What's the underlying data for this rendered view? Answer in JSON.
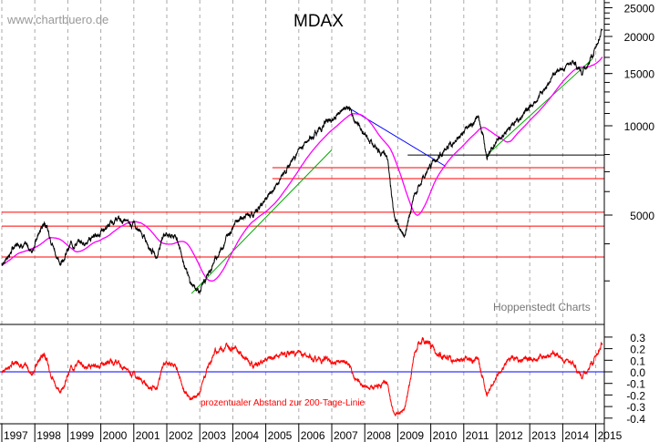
{
  "watermark": "www.chartbuero.de",
  "credit": "Hoppenstedt Charts",
  "chart_data": [
    {
      "type": "line",
      "title": "MDAX",
      "scale": "log",
      "grid": "vertical dashed, yearly",
      "ylim": [
        2000,
        26000
      ],
      "yticks": [
        "25000",
        "20000",
        "15000",
        "10000",
        "5000"
      ],
      "ytick_values": [
        25000,
        20000,
        15000,
        10000,
        5000
      ],
      "xticks": [
        "1997",
        "1998",
        "1999",
        "2000",
        "2001",
        "2002",
        "2003",
        "2004",
        "2005",
        "2006",
        "2007",
        "2008",
        "2009",
        "2010",
        "2011",
        "2012",
        "2013",
        "2014",
        "2015"
      ],
      "series": [
        {
          "color": "#000000",
          "points": [
            [
              1997.0,
              3410
            ],
            [
              1997.5,
              4070
            ],
            [
              1997.9,
              3800
            ],
            [
              1998.3,
              4790
            ],
            [
              1998.75,
              3410
            ],
            [
              1999.1,
              3990
            ],
            [
              1999.6,
              4070
            ],
            [
              2000.5,
              4840
            ],
            [
              2001.0,
              4690
            ],
            [
              2001.7,
              3620
            ],
            [
              2001.9,
              4350
            ],
            [
              2002.3,
              4220
            ],
            [
              2002.7,
              2960
            ],
            [
              2003.0,
              2760
            ],
            [
              2003.4,
              3410
            ],
            [
              2004.1,
              4840
            ],
            [
              2004.6,
              5000
            ],
            [
              2005.2,
              6000
            ],
            [
              2006.0,
              8260
            ],
            [
              2006.4,
              9200
            ],
            [
              2006.8,
              10200
            ],
            [
              2007.45,
              11500
            ],
            [
              2007.85,
              9860
            ],
            [
              2008.3,
              8560
            ],
            [
              2008.7,
              7700
            ],
            [
              2008.9,
              4840
            ],
            [
              2009.2,
              4270
            ],
            [
              2009.5,
              5800
            ],
            [
              2010.05,
              7540
            ],
            [
              2010.75,
              8900
            ],
            [
              2011.45,
              10700
            ],
            [
              2011.7,
              8090
            ],
            [
              2012.4,
              9860
            ],
            [
              2013.2,
              12200
            ],
            [
              2013.8,
              15300
            ],
            [
              2014.35,
              16400
            ],
            [
              2014.6,
              15050
            ],
            [
              2014.9,
              17100
            ],
            [
              2015.2,
              21200
            ]
          ]
        }
      ],
      "moving_average": {
        "days": 200,
        "color": "#ff00ff"
      },
      "horizontal_lines": [
        {
          "value": 7970,
          "color": "#000000",
          "from": 2009.3
        },
        {
          "value": 7220,
          "color": "#ff0000",
          "from": 2005.2
        },
        {
          "value": 6635,
          "color": "#ff0000",
          "from": 2005.2
        },
        {
          "value": 5110,
          "color": "#ff0000",
          "from": 1997.0
        },
        {
          "value": 4590,
          "color": "#ff0000",
          "from": 1997.0
        },
        {
          "value": 3610,
          "color": "#ff0000",
          "from": 1997.0
        }
      ],
      "trend_lines": [
        {
          "color": "#00aa00",
          "from": [
            2002.75,
            2720
          ],
          "to": [
            2007.0,
            8300
          ]
        },
        {
          "color": "#0000ff",
          "from": [
            2007.45,
            11600
          ],
          "to": [
            2010.45,
            7300
          ]
        },
        {
          "color": "#00aa00",
          "from": [
            2011.7,
            7970
          ],
          "to": [
            2014.9,
            16800
          ]
        }
      ]
    },
    {
      "type": "line",
      "annotation": "prozentualer Abstand zur 200-Tage-Linie",
      "ylim": [
        -0.45,
        0.38
      ],
      "yticks": [
        "0.3",
        "0.2",
        "0.1",
        "0.0",
        "-0.1",
        "-0.2",
        "-0.3",
        "-0.4"
      ],
      "ytick_values": [
        0.3,
        0.2,
        0.1,
        0.0,
        -0.1,
        -0.2,
        -0.3,
        -0.4
      ],
      "zero_line_color": "#0000ff",
      "series_color": "#ff0000"
    }
  ]
}
